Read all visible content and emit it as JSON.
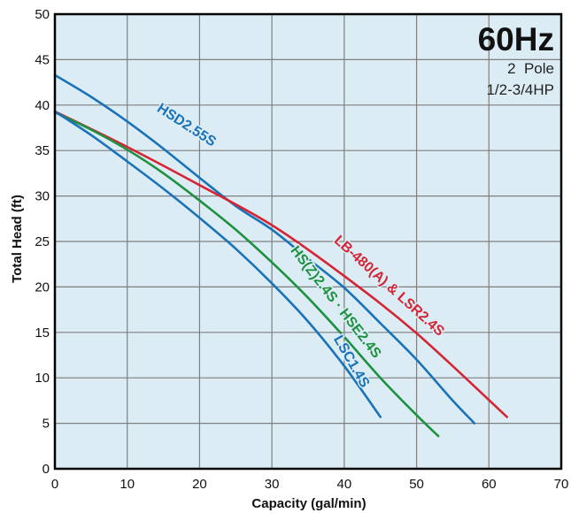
{
  "chart_data": {
    "type": "line",
    "xlabel": "Capacity (gal/min)",
    "ylabel": "Total Head (ft)",
    "xlim": [
      0,
      70
    ],
    "ylim": [
      0,
      50
    ],
    "x_ticks": [
      0,
      10,
      20,
      30,
      40,
      50,
      60,
      70
    ],
    "y_ticks": [
      0,
      5,
      10,
      15,
      20,
      25,
      30,
      35,
      40,
      45,
      50
    ],
    "grid": true,
    "background_color": "#dcecf5",
    "legend": null,
    "annotations": {
      "frequency": "60Hz",
      "pole": "2  Pole",
      "horsepower": "1/2-3/4HP"
    },
    "series": [
      {
        "name": "HSD2.55S",
        "color": "#1a73b8",
        "x": [
          0,
          5,
          10,
          15,
          20,
          25,
          30,
          35,
          40,
          45,
          50,
          55,
          58
        ],
        "y": [
          43.3,
          40.9,
          38.2,
          35.2,
          32.0,
          28.9,
          26.3,
          23.1,
          19.9,
          16.0,
          12.0,
          7.5,
          5.0
        ]
      },
      {
        "name": "LB-480(A) & LSR2.4S",
        "color": "#d62434",
        "x": [
          0,
          10,
          20,
          30,
          40,
          50,
          62.5
        ],
        "y": [
          39.3,
          35.4,
          31.2,
          26.8,
          21.2,
          14.9,
          5.7
        ]
      },
      {
        "name": "HS(Z)2.4S · HSE2.4S",
        "color": "#1d9140",
        "x": [
          0,
          5,
          10,
          15,
          20,
          25,
          30,
          35,
          40,
          45,
          50,
          53
        ],
        "y": [
          39.2,
          37.3,
          35.1,
          32.5,
          29.5,
          26.3,
          22.7,
          18.8,
          14.5,
          10.0,
          5.9,
          3.6
        ]
      },
      {
        "name": "LSC1.4S",
        "color": "#1a73b8",
        "x": [
          0,
          5,
          10,
          15,
          20,
          25,
          30,
          35,
          40,
          45
        ],
        "y": [
          39.3,
          36.7,
          33.8,
          30.8,
          27.6,
          24.2,
          20.4,
          16.2,
          11.3,
          5.7
        ]
      }
    ]
  }
}
